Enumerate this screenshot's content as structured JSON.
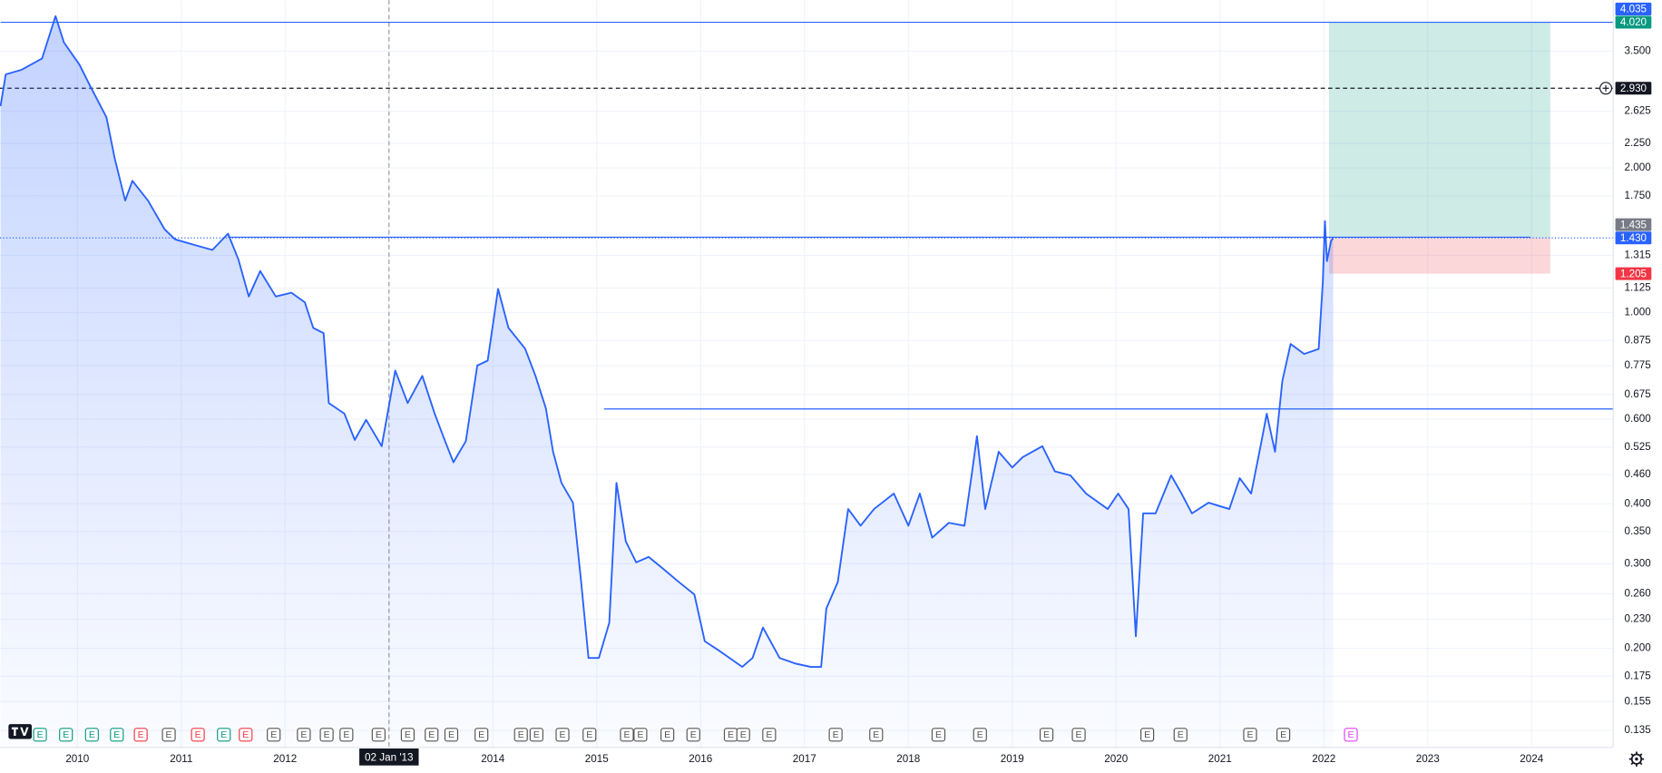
{
  "chart_data": {
    "type": "line",
    "log_scale": true,
    "grid": true,
    "xlim": [
      2009.255,
      2024.786
    ],
    "ylim": [
      0.1244,
      4.47
    ],
    "xticks": [
      2010,
      2011,
      2012,
      2013,
      2014,
      2015,
      2016,
      2017,
      2018,
      2019,
      2020,
      2021,
      2022,
      2023,
      2024
    ],
    "yticks": [
      {
        "value": 3.5,
        "label": "3.500"
      },
      {
        "value": 2.625,
        "label": "2.625"
      },
      {
        "value": 2.25,
        "label": "2.250"
      },
      {
        "value": 2.0,
        "label": "2.000"
      },
      {
        "value": 1.75,
        "label": "1.750"
      },
      {
        "value": 1.315,
        "label": "1.315"
      },
      {
        "value": 1.125,
        "label": "1.125"
      },
      {
        "value": 1.0,
        "label": "1.000"
      },
      {
        "value": 0.875,
        "label": "0.875"
      },
      {
        "value": 0.775,
        "label": "0.775"
      },
      {
        "value": 0.675,
        "label": "0.675"
      },
      {
        "value": 0.6,
        "label": "0.600"
      },
      {
        "value": 0.525,
        "label": "0.525"
      },
      {
        "value": 0.46,
        "label": "0.460"
      },
      {
        "value": 0.4,
        "label": "0.400"
      },
      {
        "value": 0.35,
        "label": "0.350"
      },
      {
        "value": 0.3,
        "label": "0.300"
      },
      {
        "value": 0.26,
        "label": "0.260"
      },
      {
        "value": 0.23,
        "label": "0.230"
      },
      {
        "value": 0.2,
        "label": "0.200"
      },
      {
        "value": 0.175,
        "label": "0.175"
      },
      {
        "value": 0.155,
        "label": "0.155"
      },
      {
        "value": 0.135,
        "label": "0.135"
      }
    ],
    "x": [
      2009.26,
      2009.31,
      2009.46,
      2009.66,
      2009.79,
      2009.87,
      2010.02,
      2010.12,
      2010.28,
      2010.36,
      2010.46,
      2010.53,
      2010.68,
      2010.84,
      2010.94,
      2011.14,
      2011.3,
      2011.45,
      2011.55,
      2011.65,
      2011.76,
      2011.91,
      2012.06,
      2012.19,
      2012.27,
      2012.37,
      2012.42,
      2012.57,
      2012.67,
      2012.78,
      2012.93,
      2013.06,
      2013.18,
      2013.32,
      2013.44,
      2013.54,
      2013.62,
      2013.74,
      2013.85,
      2013.95,
      2014.05,
      2014.15,
      2014.31,
      2014.41,
      2014.51,
      2014.58,
      2014.66,
      2014.77,
      2014.85,
      2014.92,
      2015.02,
      2015.12,
      2015.19,
      2015.28,
      2015.38,
      2015.5,
      2015.63,
      2015.79,
      2015.94,
      2016.04,
      2016.19,
      2016.4,
      2016.5,
      2016.6,
      2016.76,
      2016.91,
      2017.06,
      2017.16,
      2017.21,
      2017.32,
      2017.42,
      2017.54,
      2017.67,
      2017.86,
      2018.0,
      2018.11,
      2018.23,
      2018.39,
      2018.54,
      2018.62,
      2018.66,
      2018.74,
      2018.87,
      2019.0,
      2019.1,
      2019.29,
      2019.41,
      2019.56,
      2019.71,
      2019.92,
      2020.02,
      2020.12,
      2020.19,
      2020.26,
      2020.38,
      2020.53,
      2020.63,
      2020.73,
      2020.89,
      2021.09,
      2021.19,
      2021.3,
      2021.4,
      2021.45,
      2021.53,
      2021.6,
      2021.68,
      2021.81,
      2021.95,
      2021.99,
      2022.01,
      2022.03,
      2022.07,
      2022.09
    ],
    "series": [
      {
        "color": "#2962ff",
        "values": [
          2.69,
          3.13,
          3.2,
          3.38,
          4.14,
          3.65,
          3.28,
          2.97,
          2.55,
          2.09,
          1.71,
          1.88,
          1.71,
          1.49,
          1.42,
          1.38,
          1.35,
          1.46,
          1.29,
          1.08,
          1.22,
          1.08,
          1.1,
          1.05,
          0.929,
          0.906,
          0.648,
          0.616,
          0.543,
          0.598,
          0.527,
          0.757,
          0.648,
          0.738,
          0.616,
          0.54,
          0.488,
          0.54,
          0.776,
          0.794,
          1.12,
          0.929,
          0.841,
          0.738,
          0.632,
          0.513,
          0.442,
          0.402,
          0.275,
          0.191,
          0.191,
          0.226,
          0.442,
          0.334,
          0.302,
          0.31,
          0.294,
          0.275,
          0.259,
          0.207,
          0.197,
          0.183,
          0.191,
          0.221,
          0.191,
          0.186,
          0.183,
          0.183,
          0.242,
          0.275,
          0.39,
          0.36,
          0.39,
          0.42,
          0.36,
          0.42,
          0.34,
          0.365,
          0.36,
          0.476,
          0.553,
          0.39,
          0.513,
          0.476,
          0.5,
          0.527,
          0.467,
          0.458,
          0.42,
          0.39,
          0.42,
          0.39,
          0.212,
          0.382,
          0.382,
          0.458,
          0.42,
          0.382,
          0.402,
          0.39,
          0.452,
          0.42,
          0.54,
          0.616,
          0.513,
          0.72,
          0.86,
          0.82,
          0.84,
          1.16,
          1.55,
          1.28,
          1.41,
          1.43
        ]
      }
    ],
    "hlines": [
      {
        "value": 4.02,
        "x": [
          2009.26,
          2024.79
        ],
        "color": "#2962ff"
      },
      {
        "value": 1.435,
        "x": [
          2011.45,
          2023.99
        ],
        "color": "#2962ff"
      },
      {
        "value": 0.63,
        "x": [
          2015.07,
          2024.79
        ],
        "color": "#2962ff"
      }
    ],
    "position": {
      "entry": 1.43,
      "target": 4.02,
      "stop": 1.205,
      "x": [
        2022.05,
        2024.18
      ]
    },
    "badges": [
      {
        "value": 1.205,
        "label": "1.205",
        "color": "#f23645"
      },
      {
        "value": 1.43,
        "label": "1.430",
        "color": "#2962ff",
        "line": "dotted"
      },
      {
        "value": 1.435,
        "label": "1.435",
        "color": "#787b86"
      },
      {
        "value": 2.93,
        "label": "2.930",
        "color": "#131722",
        "line": "dashed"
      },
      {
        "value": 4.02,
        "label": "4.020",
        "color": "#089981"
      },
      {
        "value": 4.035,
        "label": "4.035",
        "color": "#2962ff"
      }
    ],
    "crosshair": {
      "x": 2013.0,
      "x_label": "02 Jan '13"
    },
    "events": {
      "label": "E",
      "x": [
        2009.64,
        2009.89,
        2010.14,
        2010.38,
        2010.61,
        2010.88,
        2011.16,
        2011.41,
        2011.62,
        2011.89,
        2012.18,
        2012.4,
        2012.59,
        2012.9,
        2013.18,
        2013.41,
        2013.6,
        2013.89,
        2014.27,
        2014.42,
        2014.67,
        2014.93,
        2015.29,
        2015.42,
        2015.68,
        2015.93,
        2016.29,
        2016.41,
        2016.66,
        2017.3,
        2017.69,
        2018.29,
        2018.69,
        2019.33,
        2019.64,
        2020.3,
        2020.62,
        2021.29,
        2021.61,
        2022.26
      ],
      "colors": [
        "#089981",
        "#089981",
        "#089981",
        "#089981",
        "#f23645",
        "#555555",
        "#f23645",
        "#089981",
        "#f23645",
        "#555555",
        "#555555",
        "#555555",
        "#555555",
        "#555555",
        "#555555",
        "#555555",
        "#555555",
        "#555555",
        "#555555",
        "#555555",
        "#555555",
        "#555555",
        "#555555",
        "#555555",
        "#555555",
        "#555555",
        "#555555",
        "#555555",
        "#555555",
        "#555555",
        "#555555",
        "#555555",
        "#555555",
        "#555555",
        "#555555",
        "#555555",
        "#555555",
        "#555555",
        "#555555",
        "#e040fb"
      ]
    }
  }
}
